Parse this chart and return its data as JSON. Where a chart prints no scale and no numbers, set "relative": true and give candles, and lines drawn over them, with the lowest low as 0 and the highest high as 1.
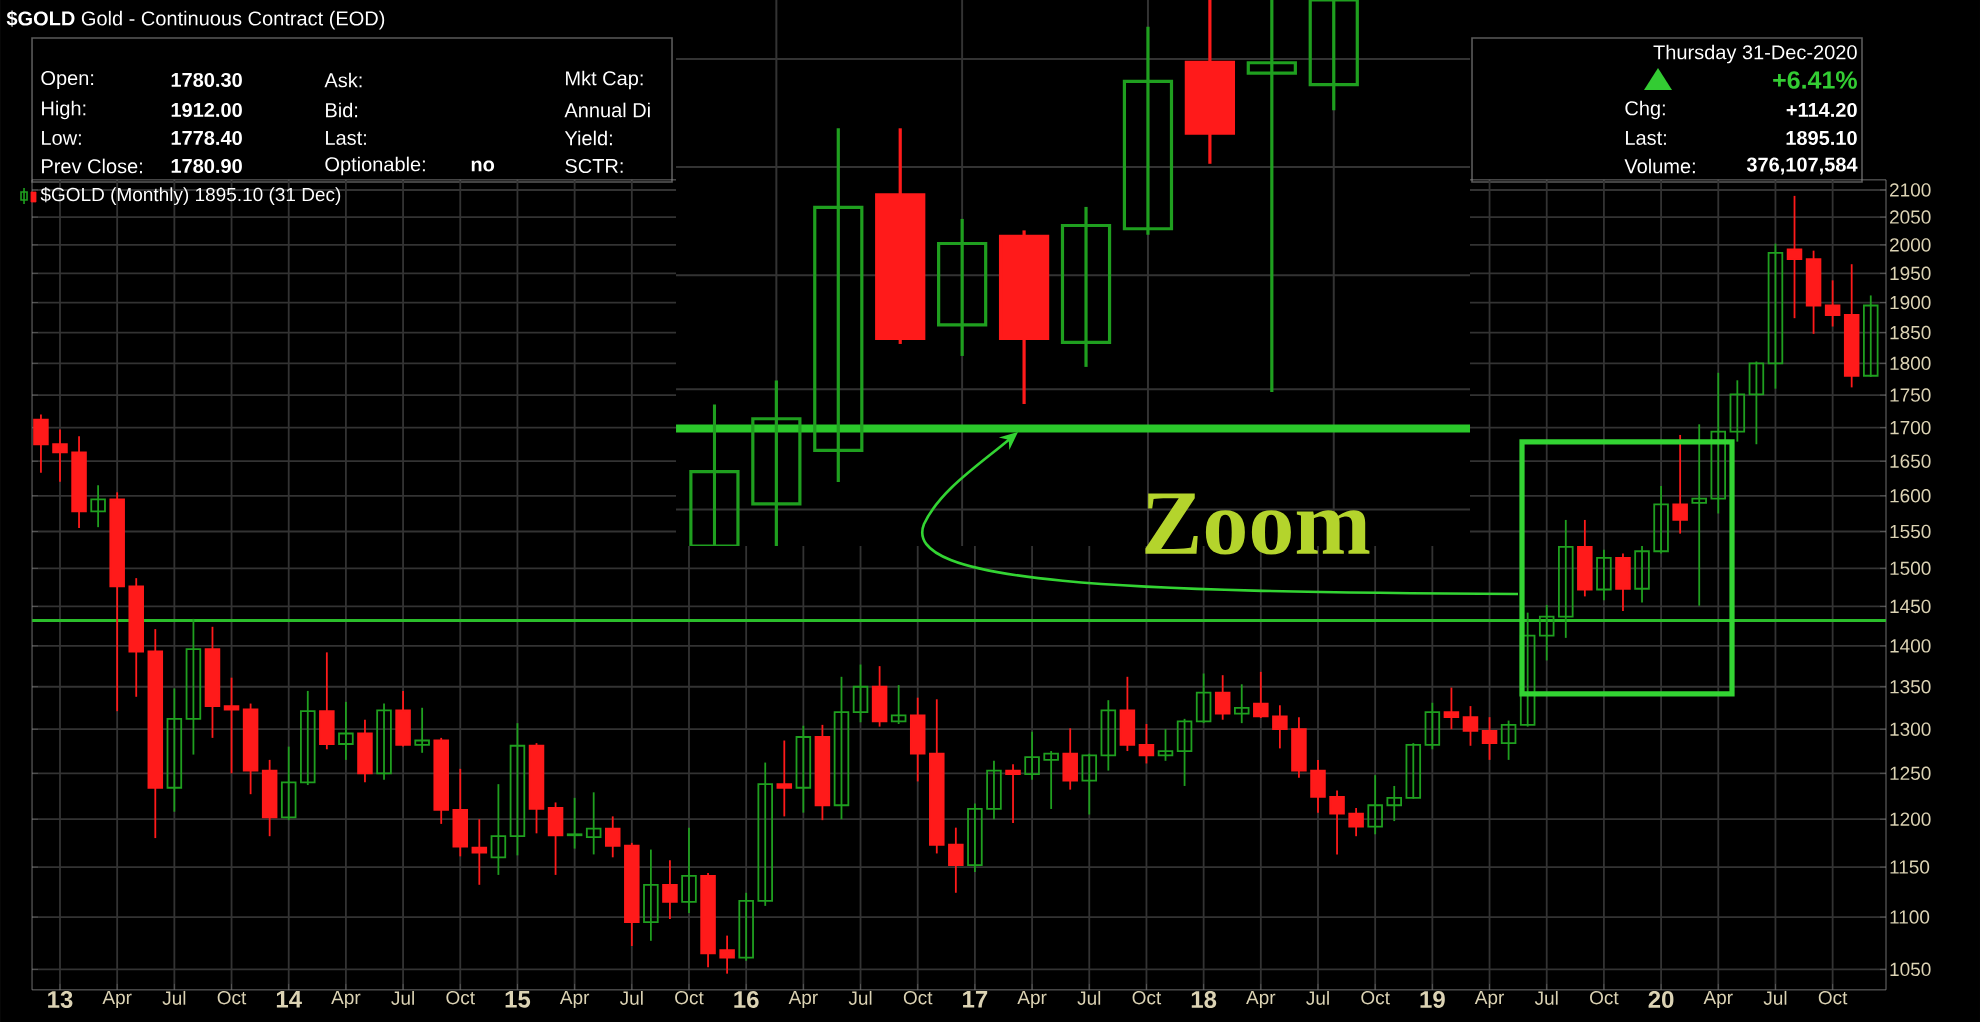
{
  "chart_data": [
    {
      "type": "candlestick",
      "title": "**$GOLD** Gold - Continuous Contract (EOD)",
      "annotations": [
        "Open:",
        "1780.30",
        "High:",
        "1912.00",
        "Low:",
        "1778.40",
        "Prev Close:",
        "1780.90",
        "Ask:",
        "Bid:",
        "Last:",
        "Optionable:",
        "no",
        "Mkt Cap:",
        "Annual Di",
        "Yield:",
        "SCTR:",
        "Thursday 31-Dec-2020",
        "+6.41%",
        "Chg:",
        "+114.20",
        "Last:",
        "1895.10",
        "Volume:",
        "376,107,584",
        "Zoom"
      ],
      "x": [
        "2012-12",
        "2013-01",
        "2013-02",
        "2013-03",
        "2013-04",
        "2013-05",
        "2013-06",
        "2013-07",
        "2013-08",
        "2013-09",
        "2013-10",
        "2013-11",
        "2013-12",
        "2014-01",
        "2014-02",
        "2014-03",
        "2014-04",
        "2014-05",
        "2014-06",
        "2014-07",
        "2014-08",
        "2014-09",
        "2014-10",
        "2014-11",
        "2014-12",
        "2015-01",
        "2015-02",
        "2015-03",
        "2015-04",
        "2015-05",
        "2015-06",
        "2015-07",
        "2015-08",
        "2015-09",
        "2015-10",
        "2015-11",
        "2015-12",
        "2016-01",
        "2016-02",
        "2016-03",
        "2016-04",
        "2016-05",
        "2016-06",
        "2016-07",
        "2016-08",
        "2016-09",
        "2016-10",
        "2016-11",
        "2016-12",
        "2017-01",
        "2017-02",
        "2017-03",
        "2017-04",
        "2017-05",
        "2017-06",
        "2017-07",
        "2017-08",
        "2017-09",
        "2017-10",
        "2017-11",
        "2017-12",
        "2018-01",
        "2018-02",
        "2018-03",
        "2018-04",
        "2018-05",
        "2018-06",
        "2018-07",
        "2018-08",
        "2018-09",
        "2018-10",
        "2018-11",
        "2018-12",
        "2019-01",
        "2019-02",
        "2019-03",
        "2019-04",
        "2019-05",
        "2019-06",
        "2019-07",
        "2019-08",
        "2019-09",
        "2019-10",
        "2019-11",
        "2019-12",
        "2020-01",
        "2020-02",
        "2020-03",
        "2020-04",
        "2020-05",
        "2020-06",
        "2020-07",
        "2020-08",
        "2020-09",
        "2020-10",
        "2020-11",
        "2020-12"
      ],
      "series": [
        {
          "name": "$GOLD (Monthly) 1895.10 (31 Dec)",
          "ohlc": [
            [
              1712,
              1720,
              1633,
              1675
            ],
            [
              1675,
              1697,
              1620,
              1663
            ],
            [
              1663,
              1687,
              1555,
              1578
            ],
            [
              1578,
              1615,
              1556,
              1595
            ],
            [
              1595,
              1605,
              1321,
              1476
            ],
            [
              1476,
              1487,
              1338,
              1393
            ],
            [
              1393,
              1421,
              1180,
              1234
            ],
            [
              1234,
              1348,
              1208,
              1312
            ],
            [
              1312,
              1434,
              1271,
              1396
            ],
            [
              1396,
              1424,
              1290,
              1327
            ],
            [
              1327,
              1361,
              1250,
              1323
            ],
            [
              1323,
              1330,
              1227,
              1253
            ],
            [
              1253,
              1265,
              1182,
              1202
            ],
            [
              1202,
              1280,
              1199,
              1240
            ],
            [
              1240,
              1345,
              1237,
              1321
            ],
            [
              1321,
              1392,
              1277,
              1283
            ],
            [
              1283,
              1332,
              1265,
              1295
            ],
            [
              1295,
              1311,
              1240,
              1250
            ],
            [
              1250,
              1330,
              1243,
              1322
            ],
            [
              1322,
              1345,
              1280,
              1282
            ],
            [
              1282,
              1325,
              1273,
              1287
            ],
            [
              1287,
              1290,
              1195,
              1210
            ],
            [
              1210,
              1255,
              1161,
              1171
            ],
            [
              1170,
              1200,
              1132,
              1165
            ],
            [
              1160,
              1238,
              1142,
              1182
            ],
            [
              1182,
              1307,
              1162,
              1281
            ],
            [
              1281,
              1284,
              1185,
              1211
            ],
            [
              1212,
              1218,
              1142,
              1183
            ],
            [
              1183,
              1223,
              1169,
              1184
            ],
            [
              1181,
              1229,
              1163,
              1190
            ],
            [
              1190,
              1203,
              1160,
              1172
            ],
            [
              1172,
              1175,
              1072,
              1095
            ],
            [
              1095,
              1168,
              1077,
              1132
            ],
            [
              1132,
              1157,
              1098,
              1115
            ],
            [
              1115,
              1191,
              1104,
              1141
            ],
            [
              1141,
              1144,
              1052,
              1065
            ],
            [
              1068,
              1082,
              1046,
              1061
            ],
            [
              1061,
              1124,
              1058,
              1116
            ],
            [
              1116,
              1262,
              1111,
              1238
            ],
            [
              1238,
              1287,
              1203,
              1234
            ],
            [
              1234,
              1304,
              1207,
              1291
            ],
            [
              1291,
              1305,
              1199,
              1215
            ],
            [
              1215,
              1362,
              1200,
              1320
            ],
            [
              1320,
              1377,
              1308,
              1350
            ],
            [
              1350,
              1375,
              1303,
              1309
            ],
            [
              1309,
              1352,
              1306,
              1316
            ],
            [
              1316,
              1337,
              1241,
              1272
            ],
            [
              1272,
              1335,
              1164,
              1173
            ],
            [
              1173,
              1191,
              1124,
              1152
            ],
            [
              1152,
              1217,
              1145,
              1211
            ],
            [
              1211,
              1264,
              1200,
              1253
            ],
            [
              1253,
              1260,
              1196,
              1249
            ],
            [
              1249,
              1297,
              1243,
              1268
            ],
            [
              1265,
              1275,
              1211,
              1272
            ],
            [
              1272,
              1301,
              1232,
              1242
            ],
            [
              1242,
              1272,
              1205,
              1270
            ],
            [
              1270,
              1334,
              1253,
              1322
            ],
            [
              1322,
              1362,
              1275,
              1282
            ],
            [
              1282,
              1306,
              1261,
              1270
            ],
            [
              1270,
              1300,
              1264,
              1275
            ],
            [
              1275,
              1312,
              1236,
              1309
            ],
            [
              1309,
              1366,
              1307,
              1343
            ],
            [
              1343,
              1364,
              1311,
              1318
            ],
            [
              1318,
              1353,
              1307,
              1325
            ],
            [
              1330,
              1368,
              1313,
              1315
            ],
            [
              1315,
              1328,
              1278,
              1300
            ],
            [
              1300,
              1314,
              1245,
              1253
            ],
            [
              1253,
              1265,
              1207,
              1224
            ],
            [
              1224,
              1231,
              1163,
              1206
            ],
            [
              1206,
              1212,
              1182,
              1192
            ],
            [
              1192,
              1248,
              1184,
              1215
            ],
            [
              1215,
              1236,
              1198,
              1223
            ],
            [
              1223,
              1284,
              1222,
              1282
            ],
            [
              1282,
              1331,
              1277,
              1320
            ],
            [
              1320,
              1349,
              1300,
              1314
            ],
            [
              1314,
              1327,
              1281,
              1298
            ],
            [
              1298,
              1314,
              1265,
              1284
            ],
            [
              1284,
              1310,
              1265,
              1305
            ],
            [
              1305,
              1442,
              1303,
              1413
            ],
            [
              1413,
              1452,
              1382,
              1437
            ],
            [
              1437,
              1566,
              1410,
              1529
            ],
            [
              1529,
              1566,
              1463,
              1472
            ],
            [
              1472,
              1525,
              1458,
              1514
            ],
            [
              1514,
              1520,
              1444,
              1473
            ],
            [
              1473,
              1530,
              1455,
              1523
            ],
            [
              1523,
              1614,
              1520,
              1588
            ],
            [
              1588,
              1689,
              1547,
              1566
            ],
            [
              1590,
              1705,
              1451,
              1596
            ],
            [
              1596,
              1785,
              1575,
              1694
            ],
            [
              1694,
              1773,
              1679,
              1751
            ],
            [
              1751,
              1803,
              1675,
              1800
            ],
            [
              1800,
              2002,
              1760,
              1986
            ],
            [
              1992,
              2089,
              1874,
              1975
            ],
            [
              1975,
              1990,
              1848,
              1895
            ],
            [
              1895,
              1938,
              1860,
              1879
            ],
            [
              1879,
              1966,
              1762,
              1780
            ],
            [
              1780.3,
              1912,
              1778.4,
              1895.1
            ]
          ],
          "colors": [
            "#ff1a1a",
            "#ff1a1a",
            "#ff1a1a",
            "#1f9f1f",
            "#ff1a1a",
            "#ff1a1a",
            "#ff1a1a",
            "#1f9f1f",
            "#1f9f1f",
            "#ff1a1a",
            "#ff1a1a",
            "#ff1a1a",
            "#ff1a1a",
            "#1f9f1f",
            "#1f9f1f",
            "#ff1a1a",
            "#1f9f1f",
            "#ff1a1a",
            "#1f9f1f",
            "#ff1a1a",
            "#1f9f1f",
            "#ff1a1a",
            "#ff1a1a",
            "#ff1a1a",
            "#1f9f1f",
            "#1f9f1f",
            "#ff1a1a",
            "#ff1a1a",
            "#1f9f1f",
            "#1f9f1f",
            "#ff1a1a",
            "#ff1a1a",
            "#1f9f1f",
            "#ff1a1a",
            "#1f9f1f",
            "#ff1a1a",
            "#ff1a1a",
            "#1f9f1f",
            "#1f9f1f",
            "#ff1a1a",
            "#1f9f1f",
            "#ff1a1a",
            "#1f9f1f",
            "#1f9f1f",
            "#ff1a1a",
            "#1f9f1f",
            "#ff1a1a",
            "#ff1a1a",
            "#ff1a1a",
            "#1f9f1f",
            "#1f9f1f",
            "#ff1a1a",
            "#1f9f1f",
            "#1f9f1f",
            "#ff1a1a",
            "#1f9f1f",
            "#1f9f1f",
            "#ff1a1a",
            "#ff1a1a",
            "#1f9f1f",
            "#1f9f1f",
            "#1f9f1f",
            "#ff1a1a",
            "#1f9f1f",
            "#ff1a1a",
            "#ff1a1a",
            "#ff1a1a",
            "#ff1a1a",
            "#ff1a1a",
            "#ff1a1a",
            "#1f9f1f",
            "#1f9f1f",
            "#1f9f1f",
            "#1f9f1f",
            "#ff1a1a",
            "#ff1a1a",
            "#ff1a1a",
            "#1f9f1f",
            "#1f9f1f",
            "#1f9f1f",
            "#1f9f1f",
            "#ff1a1a",
            "#1f9f1f",
            "#ff1a1a",
            "#1f9f1f",
            "#1f9f1f",
            "#ff1a1a",
            "#1f9f1f",
            "#1f9f1f",
            "#1f9f1f",
            "#1f9f1f",
            "#1f9f1f",
            "#ff1a1a",
            "#ff1a1a",
            "#ff1a1a",
            "#ff1a1a",
            "#1f9f1f"
          ]
        }
      ],
      "xlim": [
        "2012-11-17",
        "2020-12-25"
      ],
      "xticks": [
        {
          "value": "2013-01",
          "label": "13"
        },
        {
          "value": "2013-04",
          "label": "Apr"
        },
        {
          "value": "2013-07",
          "label": "Jul"
        },
        {
          "value": "2013-10",
          "label": "Oct"
        },
        {
          "value": "2014-01",
          "label": "14"
        },
        {
          "value": "2014-04",
          "label": "Apr"
        },
        {
          "value": "2014-07",
          "label": "Jul"
        },
        {
          "value": "2014-10",
          "label": "Oct"
        },
        {
          "value": "2015-01",
          "label": "15"
        },
        {
          "value": "2015-04",
          "label": "Apr"
        },
        {
          "value": "2015-07",
          "label": "Jul"
        },
        {
          "value": "2015-10",
          "label": "Oct"
        },
        {
          "value": "2016-01",
          "label": "16"
        },
        {
          "value": "2016-04",
          "label": "Apr"
        },
        {
          "value": "2016-07",
          "label": "Jul"
        },
        {
          "value": "2016-10",
          "label": "Oct"
        },
        {
          "value": "2017-01",
          "label": "17"
        },
        {
          "value": "2017-04",
          "label": "Apr"
        },
        {
          "value": "2017-07",
          "label": "Jul"
        },
        {
          "value": "2017-10",
          "label": "Oct"
        },
        {
          "value": "2018-01",
          "label": "18"
        },
        {
          "value": "2018-04",
          "label": "Apr"
        },
        {
          "value": "2018-07",
          "label": "Jul"
        },
        {
          "value": "2018-10",
          "label": "Oct"
        },
        {
          "value": "2019-01",
          "label": "19"
        },
        {
          "value": "2019-04",
          "label": "Apr"
        },
        {
          "value": "2019-07",
          "label": "Jul"
        },
        {
          "value": "2019-10",
          "label": "Oct"
        },
        {
          "value": "2020-01",
          "label": "20"
        },
        {
          "value": "2020-04",
          "label": "Apr"
        },
        {
          "value": "2020-07",
          "label": "Jul"
        },
        {
          "value": "2020-10",
          "label": "Oct"
        }
      ],
      "ylim": [
        1031,
        2119
      ],
      "yticks": [
        1050,
        1100,
        1150,
        1200,
        1250,
        1300,
        1350,
        1400,
        1450,
        1500,
        1550,
        1600,
        1650,
        1700,
        1750,
        1800,
        1850,
        1900,
        1950,
        2000,
        2050,
        2100
      ],
      "log": true,
      "grid": true,
      "legend": "top left",
      "ref_lines": [
        {
          "axis": "y",
          "value": 1432,
          "color": "#2bbd2b"
        }
      ]
    },
    {
      "type": "candlestick",
      "relative": true,
      "categories": [
        null,
        null,
        null,
        null,
        null,
        null,
        null,
        null,
        null,
        null,
        null
      ],
      "series": [
        {
          "ohlc": [
            [
              0,
              0.259,
              0,
              0.136
            ],
            [
              0.077,
              0.303,
              0,
              0.233
            ],
            [
              0.175,
              0.765,
              0.117,
              0.62
            ],
            [
              0.643,
              0.765,
              0.37,
              0.38
            ],
            [
              0.405,
              0.599,
              0.348,
              0.554
            ],
            [
              0.567,
              0.578,
              0.26,
              0.38
            ],
            [
              0.373,
              0.621,
              0.328,
              0.587
            ],
            [
              0.581,
              0.951,
              0.57,
              0.851
            ],
            [
              0.886,
              1,
              0.7,
              0.756
            ],
            [
              0.866,
              1,
              0.282,
              0.885
            ],
            [
              0.845,
              1,
              0.798,
              1
            ]
          ],
          "colors": [
            "#1f9f1f",
            "#1f9f1f",
            "#1f9f1f",
            "#ff1a1a",
            "#1f9f1f",
            "#ff1a1a",
            "#1f9f1f",
            "#1f9f1f",
            "#ff1a1a",
            "#1f9f1f",
            "#1f9f1f"
          ]
        }
      ],
      "grid": true,
      "tick_labels": false,
      "ref_lines": [
        {
          "axis": "y",
          "value": 0.215,
          "color": "#2bc82b"
        }
      ]
    }
  ]
}
